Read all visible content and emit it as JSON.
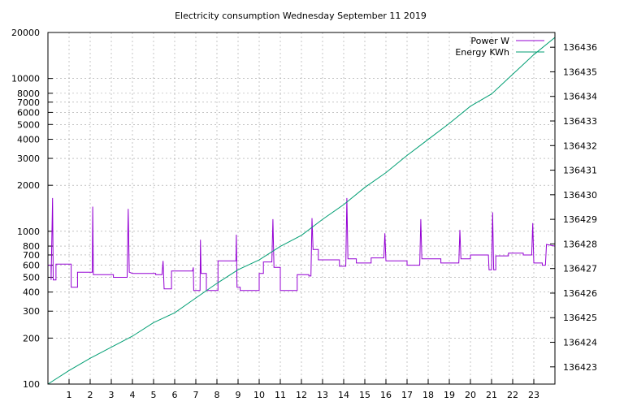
{
  "chart_data": {
    "type": "line",
    "title": "Electricity consumption Wednesday September 11 2019",
    "x_ticks": [
      1,
      2,
      3,
      4,
      5,
      6,
      7,
      8,
      9,
      10,
      11,
      12,
      13,
      14,
      15,
      16,
      17,
      18,
      19,
      20,
      21,
      22,
      23
    ],
    "x_range": [
      0,
      24
    ],
    "y_left": {
      "scale": "log",
      "range": [
        100,
        20000
      ],
      "ticks": [
        100,
        200,
        300,
        400,
        500,
        600,
        700,
        800,
        1000,
        2000,
        3000,
        4000,
        5000,
        6000,
        7000,
        8000,
        10000,
        20000
      ]
    },
    "y_right": {
      "range": [
        136422.3,
        136436.6
      ],
      "ticks": [
        136423,
        136424,
        136425,
        136426,
        136427,
        136428,
        136429,
        136430,
        136431,
        136432,
        136433,
        136434,
        136435,
        136436
      ]
    },
    "grid": true,
    "legend_position": "top-right",
    "series": [
      {
        "name": "Power W",
        "axis": "left",
        "color": "#9400d3",
        "points": [
          [
            0.0,
            600
          ],
          [
            0.15,
            600
          ],
          [
            0.15,
            480
          ],
          [
            0.22,
            1650
          ],
          [
            0.25,
            480
          ],
          [
            0.38,
            480
          ],
          [
            0.38,
            610
          ],
          [
            1.1,
            610
          ],
          [
            1.1,
            430
          ],
          [
            1.4,
            430
          ],
          [
            1.4,
            540
          ],
          [
            2.1,
            540
          ],
          [
            2.12,
            1450
          ],
          [
            2.15,
            520
          ],
          [
            3.1,
            520
          ],
          [
            3.1,
            500
          ],
          [
            3.75,
            500
          ],
          [
            3.8,
            1400
          ],
          [
            3.85,
            540
          ],
          [
            4.0,
            530
          ],
          [
            5.1,
            530
          ],
          [
            5.1,
            520
          ],
          [
            5.4,
            520
          ],
          [
            5.45,
            640
          ],
          [
            5.5,
            420
          ],
          [
            5.85,
            420
          ],
          [
            5.85,
            550
          ],
          [
            6.85,
            550
          ],
          [
            6.88,
            580
          ],
          [
            6.9,
            410
          ],
          [
            7.2,
            410
          ],
          [
            7.22,
            880
          ],
          [
            7.25,
            530
          ],
          [
            7.5,
            530
          ],
          [
            7.5,
            410
          ],
          [
            8.05,
            410
          ],
          [
            8.05,
            640
          ],
          [
            8.9,
            640
          ],
          [
            8.92,
            950
          ],
          [
            8.95,
            430
          ],
          [
            9.1,
            430
          ],
          [
            9.1,
            410
          ],
          [
            10.0,
            410
          ],
          [
            10.0,
            530
          ],
          [
            10.2,
            530
          ],
          [
            10.2,
            630
          ],
          [
            10.6,
            630
          ],
          [
            10.65,
            1200
          ],
          [
            10.7,
            580
          ],
          [
            11.0,
            580
          ],
          [
            11.0,
            410
          ],
          [
            11.8,
            410
          ],
          [
            11.8,
            520
          ],
          [
            12.35,
            520
          ],
          [
            12.35,
            510
          ],
          [
            12.45,
            510
          ],
          [
            12.5,
            1220
          ],
          [
            12.55,
            760
          ],
          [
            12.8,
            760
          ],
          [
            12.8,
            650
          ],
          [
            13.8,
            650
          ],
          [
            13.8,
            590
          ],
          [
            14.1,
            590
          ],
          [
            14.15,
            1650
          ],
          [
            14.2,
            660
          ],
          [
            14.6,
            660
          ],
          [
            14.6,
            620
          ],
          [
            15.3,
            620
          ],
          [
            15.3,
            670
          ],
          [
            15.9,
            670
          ],
          [
            15.95,
            970
          ],
          [
            16.0,
            640
          ],
          [
            17.0,
            640
          ],
          [
            17.0,
            600
          ],
          [
            17.6,
            600
          ],
          [
            17.65,
            1200
          ],
          [
            17.7,
            660
          ],
          [
            18.6,
            660
          ],
          [
            18.6,
            620
          ],
          [
            19.45,
            620
          ],
          [
            19.5,
            1020
          ],
          [
            19.55,
            660
          ],
          [
            20.0,
            660
          ],
          [
            20.0,
            700
          ],
          [
            20.85,
            700
          ],
          [
            20.88,
            560
          ],
          [
            21.0,
            560
          ],
          [
            21.05,
            1330
          ],
          [
            21.1,
            560
          ],
          [
            21.2,
            560
          ],
          [
            21.2,
            690
          ],
          [
            21.8,
            690
          ],
          [
            21.8,
            720
          ],
          [
            22.5,
            720
          ],
          [
            22.5,
            700
          ],
          [
            22.9,
            700
          ],
          [
            22.95,
            1130
          ],
          [
            23.0,
            620
          ],
          [
            23.4,
            620
          ],
          [
            23.4,
            600
          ],
          [
            23.55,
            600
          ],
          [
            23.6,
            820
          ],
          [
            24.0,
            800
          ]
        ]
      },
      {
        "name": "Energy KWh",
        "axis": "right",
        "color": "#009e73",
        "points": [
          [
            0.0,
            136422.3
          ],
          [
            1.0,
            136422.85
          ],
          [
            2.0,
            136423.35
          ],
          [
            3.0,
            136423.8
          ],
          [
            4.0,
            136424.25
          ],
          [
            5.0,
            136424.8
          ],
          [
            6.0,
            136425.2
          ],
          [
            7.0,
            136425.8
          ],
          [
            8.0,
            136426.4
          ],
          [
            9.0,
            136426.95
          ],
          [
            10.0,
            136427.35
          ],
          [
            11.0,
            136427.9
          ],
          [
            12.0,
            136428.35
          ],
          [
            13.0,
            136429.0
          ],
          [
            14.0,
            136429.6
          ],
          [
            15.0,
            136430.3
          ],
          [
            16.0,
            136430.9
          ],
          [
            17.0,
            136431.6
          ],
          [
            18.0,
            136432.25
          ],
          [
            19.0,
            136432.9
          ],
          [
            20.0,
            136433.6
          ],
          [
            21.0,
            136434.1
          ],
          [
            22.0,
            136434.9
          ],
          [
            23.0,
            136435.7
          ],
          [
            24.0,
            136436.4
          ]
        ]
      }
    ]
  }
}
